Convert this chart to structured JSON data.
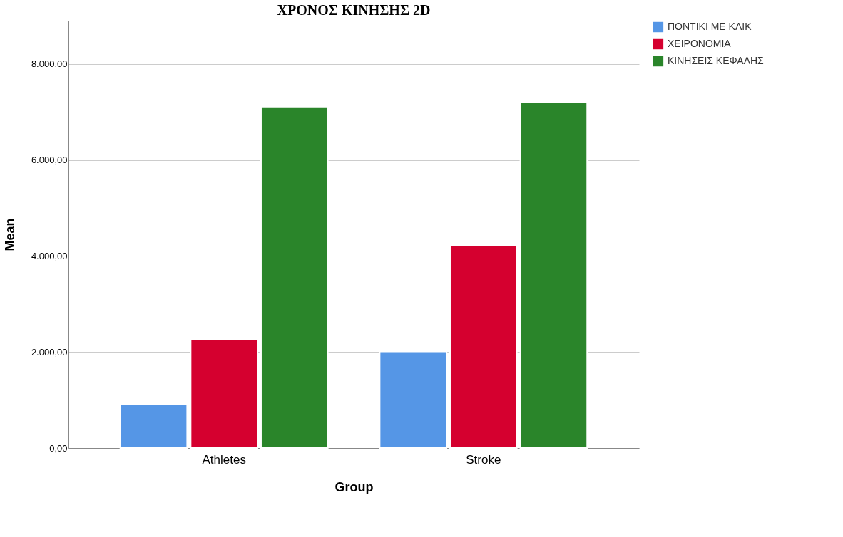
{
  "chart_data": {
    "type": "bar",
    "title": "ΧΡΟΝΟΣ ΚΙΝΗΣΗΣ 2D",
    "xlabel": "Group",
    "ylabel": "Mean",
    "categories": [
      "Athletes",
      "Stroke"
    ],
    "series": [
      {
        "name": "ΠΟΝΤΙΚΙ ΜΕ ΚΛΙΚ",
        "color": "#5596e6",
        "values": [
          920,
          2010
        ]
      },
      {
        "name": "ΧΕΙΡΟΝΟΜΙΑ",
        "color": "#d5002f",
        "values": [
          2270,
          4220
        ]
      },
      {
        "name": "ΚΙΝΗΣΕΙΣ ΚΕΦΑΛΗΣ",
        "color": "#2a852a",
        "values": [
          7110,
          7200
        ]
      }
    ],
    "ylim": [
      0,
      8900
    ],
    "yticks": [
      {
        "value": 0,
        "label": "0,00"
      },
      {
        "value": 2000,
        "label": "2.000,00"
      },
      {
        "value": 4000,
        "label": "4.000,00"
      },
      {
        "value": 6000,
        "label": "6.000,00"
      },
      {
        "value": 8000,
        "label": "8.000,00"
      }
    ],
    "grid": "y",
    "legend": "top right"
  }
}
